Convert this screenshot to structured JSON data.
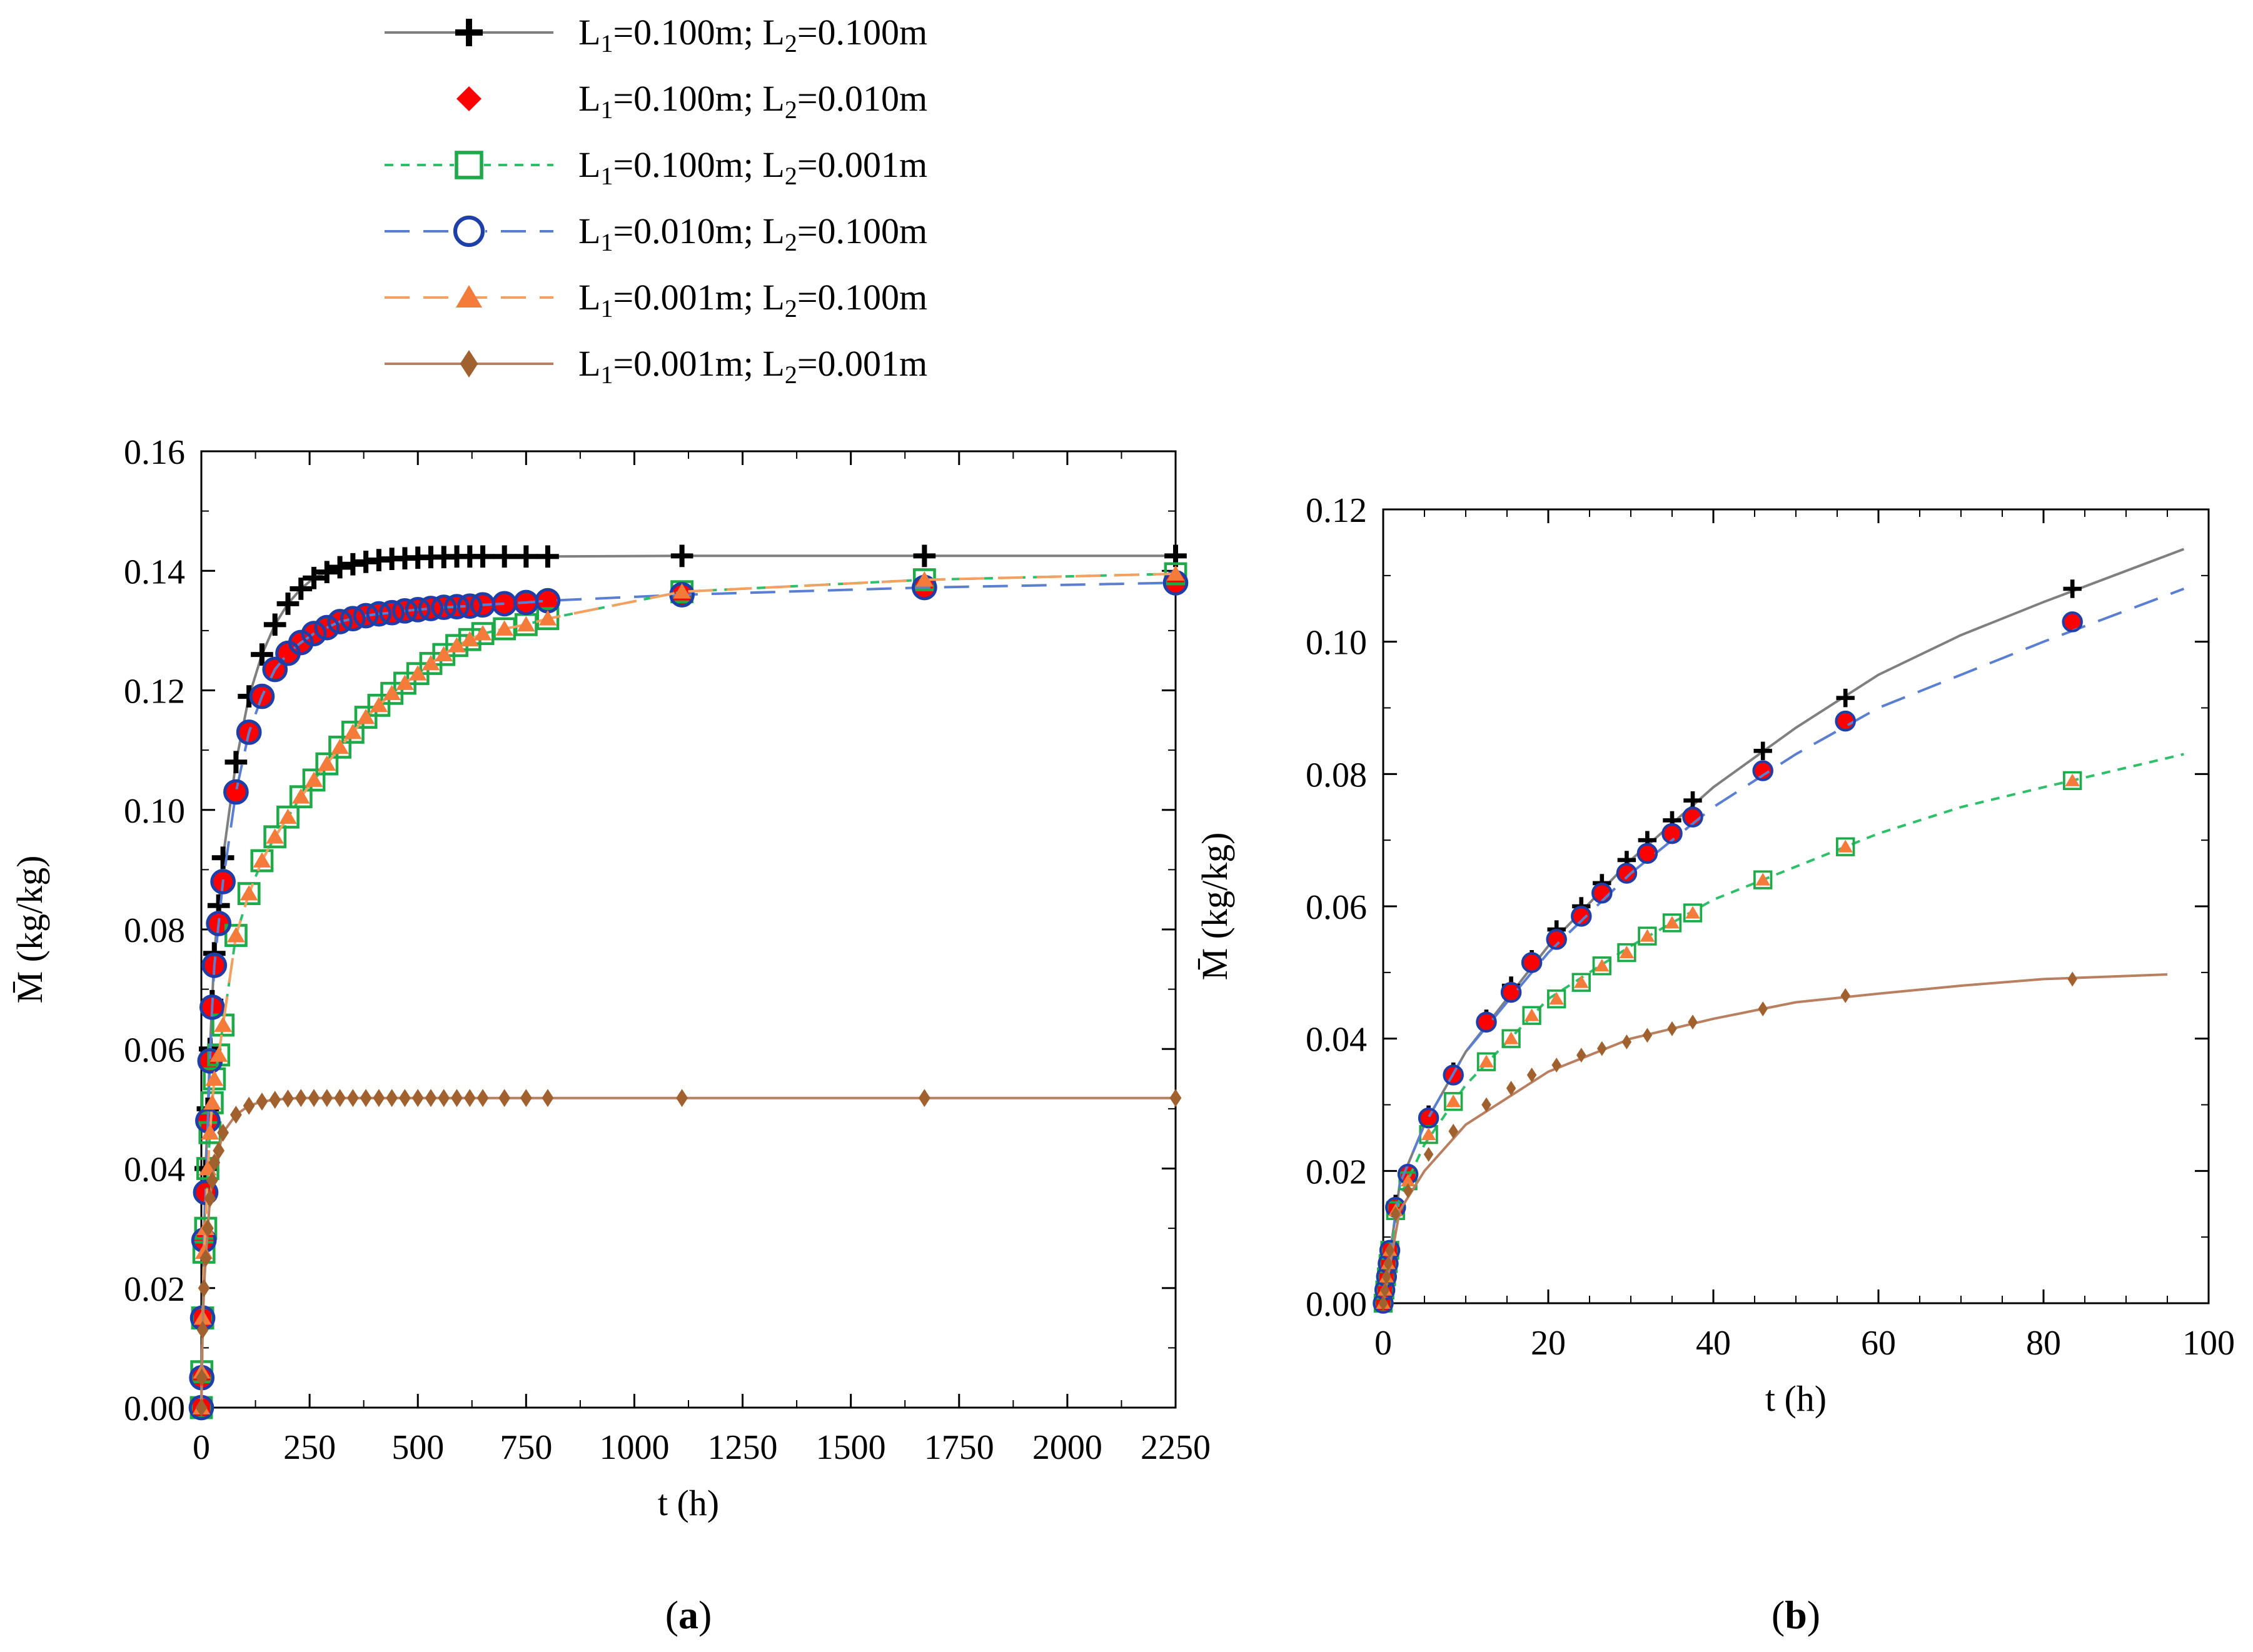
{
  "legend": {
    "entries": [
      {
        "id": "s1",
        "l1": "0.100m",
        "l2": "0.100m",
        "color": "#000000",
        "line_color": "#7f7f7f",
        "marker": "plus",
        "dash": "solid"
      },
      {
        "id": "s2",
        "l1": "0.100m",
        "l2": "0.010m",
        "color": "#ff0000",
        "line_color": "#ff0000",
        "marker": "diamond",
        "dash": "none"
      },
      {
        "id": "s3",
        "l1": "0.100m",
        "l2": "0.001m",
        "color": "#1faa4a",
        "line_color": "#2fbf6a",
        "marker": "square-open",
        "dash": "short"
      },
      {
        "id": "s4",
        "l1": "0.010m",
        "l2": "0.100m",
        "color": "#1f3fa8",
        "line_color": "#5a7fd0",
        "marker": "circle-open",
        "dash": "long"
      },
      {
        "id": "s5",
        "l1": "0.001m",
        "l2": "0.100m",
        "color": "#f47b3a",
        "line_color": "#f4a060",
        "marker": "triangle",
        "dash": "long"
      },
      {
        "id": "s6",
        "l1": "0.001m",
        "l2": "0.001m",
        "color": "#a0612e",
        "line_color": "#b88060",
        "marker": "diamond-small",
        "dash": "solid"
      }
    ]
  },
  "chart_data": [
    {
      "type": "line",
      "panel_label": "a",
      "xlabel": "t (h)",
      "ylabel": "M̄ (kg/kg)",
      "xlim": [
        0,
        2250
      ],
      "ylim": [
        0,
        0.16
      ],
      "xticks": [
        0,
        250,
        500,
        750,
        1000,
        1250,
        1500,
        1750,
        2000,
        2250
      ],
      "yticks": [
        0.0,
        0.02,
        0.04,
        0.06,
        0.08,
        0.1,
        0.12,
        0.14,
        0.16
      ],
      "series": [
        {
          "name": "L1=0.100m; L2=0.100m",
          "x": [
            0,
            1,
            3,
            6,
            10,
            15,
            20,
            25,
            30,
            40,
            50,
            80,
            110,
            140,
            170,
            200,
            230,
            260,
            290,
            320,
            350,
            380,
            410,
            440,
            470,
            500,
            530,
            560,
            590,
            620,
            650,
            700,
            750,
            800,
            1110,
            1670,
            2250
          ],
          "y": [
            0,
            0.005,
            0.015,
            0.028,
            0.04,
            0.05,
            0.06,
            0.068,
            0.076,
            0.084,
            0.092,
            0.108,
            0.119,
            0.126,
            0.131,
            0.1345,
            0.137,
            0.1388,
            0.1398,
            0.1406,
            0.1411,
            0.1415,
            0.1418,
            0.142,
            0.1421,
            0.1422,
            0.1423,
            0.1423,
            0.1424,
            0.1424,
            0.1424,
            0.1424,
            0.1424,
            0.1424,
            0.1425,
            0.1425,
            0.1425
          ]
        },
        {
          "name": "L1=0.100m; L2=0.010m",
          "x": [
            0,
            1,
            3,
            6,
            10,
            15,
            20,
            25,
            30,
            40,
            50,
            80,
            110,
            140,
            170,
            200,
            230,
            260,
            290,
            320,
            350,
            380,
            410,
            440,
            470,
            500,
            530,
            560,
            590,
            620,
            650,
            700,
            750,
            800,
            1110,
            1670,
            2250
          ],
          "y": [
            0,
            0.005,
            0.015,
            0.028,
            0.036,
            0.048,
            0.058,
            0.067,
            0.074,
            0.081,
            0.088,
            0.103,
            0.113,
            0.119,
            0.1235,
            0.1262,
            0.128,
            0.1295,
            0.1305,
            0.1315,
            0.132,
            0.1325,
            0.1328,
            0.133,
            0.1333,
            0.1335,
            0.1337,
            0.1339,
            0.134,
            0.1341,
            0.1343,
            0.1345,
            0.1347,
            0.135,
            0.136,
            0.1372,
            0.138
          ]
        },
        {
          "name": "L1=0.100m; L2=0.001m",
          "x": [
            0,
            1,
            3,
            6,
            10,
            15,
            20,
            25,
            30,
            40,
            50,
            80,
            110,
            140,
            170,
            200,
            230,
            260,
            290,
            320,
            350,
            380,
            410,
            440,
            470,
            500,
            530,
            560,
            590,
            620,
            650,
            700,
            750,
            800,
            1110,
            1670,
            2250
          ],
          "y": [
            0,
            0.006,
            0.015,
            0.026,
            0.03,
            0.04,
            0.046,
            0.051,
            0.055,
            0.059,
            0.064,
            0.079,
            0.086,
            0.0915,
            0.0955,
            0.0988,
            0.1022,
            0.105,
            0.1077,
            0.1105,
            0.113,
            0.1155,
            0.1175,
            0.1195,
            0.1212,
            0.1228,
            0.1245,
            0.126,
            0.1275,
            0.1285,
            0.1295,
            0.1303,
            0.131,
            0.132,
            0.1365,
            0.1385,
            0.1395
          ]
        },
        {
          "name": "L1=0.010m; L2=0.100m",
          "x": [
            0,
            1,
            3,
            6,
            10,
            15,
            20,
            25,
            30,
            40,
            50,
            80,
            110,
            140,
            170,
            200,
            230,
            260,
            290,
            320,
            350,
            380,
            410,
            440,
            470,
            500,
            530,
            560,
            590,
            620,
            650,
            700,
            750,
            800,
            1110,
            1670,
            2250
          ],
          "y": [
            0,
            0.005,
            0.015,
            0.028,
            0.036,
            0.048,
            0.058,
            0.067,
            0.074,
            0.081,
            0.088,
            0.103,
            0.113,
            0.119,
            0.1235,
            0.1262,
            0.128,
            0.1295,
            0.1305,
            0.1315,
            0.132,
            0.1325,
            0.1328,
            0.133,
            0.1333,
            0.1335,
            0.1337,
            0.1339,
            0.134,
            0.1341,
            0.1343,
            0.1345,
            0.1347,
            0.135,
            0.136,
            0.1372,
            0.138
          ]
        },
        {
          "name": "L1=0.001m; L2=0.100m",
          "x": [
            0,
            1,
            3,
            6,
            10,
            15,
            20,
            25,
            30,
            40,
            50,
            80,
            110,
            140,
            170,
            200,
            230,
            260,
            290,
            320,
            350,
            380,
            410,
            440,
            470,
            500,
            530,
            560,
            590,
            620,
            650,
            700,
            750,
            800,
            1110,
            1670,
            2250
          ],
          "y": [
            0,
            0.006,
            0.015,
            0.026,
            0.03,
            0.04,
            0.046,
            0.051,
            0.055,
            0.059,
            0.064,
            0.079,
            0.086,
            0.0915,
            0.0955,
            0.0988,
            0.1022,
            0.105,
            0.1077,
            0.1105,
            0.113,
            0.1155,
            0.1175,
            0.1195,
            0.1212,
            0.1228,
            0.1245,
            0.126,
            0.1275,
            0.1285,
            0.1295,
            0.1303,
            0.131,
            0.132,
            0.1365,
            0.1385,
            0.1395
          ]
        },
        {
          "name": "L1=0.001m; L2=0.001m",
          "x": [
            0,
            1,
            3,
            6,
            10,
            15,
            20,
            25,
            30,
            40,
            50,
            80,
            110,
            140,
            170,
            200,
            230,
            260,
            290,
            320,
            350,
            380,
            410,
            440,
            470,
            500,
            530,
            560,
            590,
            620,
            650,
            700,
            750,
            800,
            1110,
            1670,
            2250
          ],
          "y": [
            0,
            0.005,
            0.013,
            0.02,
            0.025,
            0.03,
            0.035,
            0.038,
            0.041,
            0.043,
            0.046,
            0.049,
            0.0505,
            0.0512,
            0.0515,
            0.0517,
            0.0518,
            0.0518,
            0.0518,
            0.0518,
            0.0518,
            0.0518,
            0.0518,
            0.0518,
            0.0518,
            0.0518,
            0.0518,
            0.0518,
            0.0518,
            0.0518,
            0.0518,
            0.0518,
            0.0518,
            0.0518,
            0.0518,
            0.0518,
            0.0518
          ]
        }
      ]
    },
    {
      "type": "line",
      "panel_label": "b",
      "xlabel": "t (h)",
      "ylabel": "M̄ (kg/kg)",
      "xlim": [
        0,
        100
      ],
      "ylim": [
        0,
        0.12
      ],
      "xticks": [
        0,
        20,
        40,
        60,
        80,
        100
      ],
      "yticks": [
        0.0,
        0.02,
        0.04,
        0.06,
        0.08,
        0.1,
        0.12
      ],
      "series": [
        {
          "name": "L1=0.100m; L2=0.100m",
          "x": [
            0,
            0.2,
            0.4,
            0.6,
            0.8,
            1.5,
            3,
            5.5,
            8.5,
            12.5,
            15.5,
            18,
            21,
            24,
            26.5,
            29.5,
            32,
            35,
            37.5,
            46,
            56,
            83.5
          ],
          "y": [
            0,
            0.002,
            0.004,
            0.006,
            0.008,
            0.015,
            0.0195,
            0.0285,
            0.035,
            0.043,
            0.048,
            0.052,
            0.0565,
            0.06,
            0.0635,
            0.067,
            0.07,
            0.073,
            0.076,
            0.0835,
            0.0915,
            0.108
          ],
          "curve_x": [
            0,
            2,
            5,
            10,
            20,
            30,
            40,
            50,
            60,
            70,
            80,
            97
          ],
          "curve_y": [
            0,
            0.018,
            0.027,
            0.038,
            0.054,
            0.067,
            0.078,
            0.087,
            0.095,
            0.101,
            0.106,
            0.114
          ]
        },
        {
          "name": "L1=0.100m; L2=0.010m",
          "x": [
            0,
            0.2,
            0.4,
            0.6,
            0.8,
            1.5,
            3,
            5.5,
            8.5,
            12.5,
            15.5,
            18,
            21,
            24,
            26.5,
            29.5,
            32,
            35,
            37.5,
            46,
            56,
            83.5
          ],
          "y": [
            0,
            0.002,
            0.004,
            0.006,
            0.008,
            0.0145,
            0.0195,
            0.028,
            0.0345,
            0.0425,
            0.047,
            0.0515,
            0.055,
            0.0585,
            0.062,
            0.065,
            0.068,
            0.071,
            0.0735,
            0.0805,
            0.088,
            0.103
          ]
        },
        {
          "name": "L1=0.100m; L2=0.001m",
          "x": [
            0,
            0.2,
            0.4,
            0.6,
            0.8,
            1.5,
            3,
            5.5,
            8.5,
            12.5,
            15.5,
            18,
            21,
            24,
            26.5,
            29.5,
            32,
            35,
            37.5,
            46,
            56,
            83.5
          ],
          "y": [
            0,
            0.002,
            0.004,
            0.006,
            0.008,
            0.014,
            0.0185,
            0.0255,
            0.0305,
            0.0365,
            0.04,
            0.0435,
            0.046,
            0.0485,
            0.051,
            0.053,
            0.0555,
            0.0575,
            0.059,
            0.064,
            0.069,
            0.079
          ],
          "curve_x": [
            0,
            2,
            5,
            10,
            20,
            30,
            40,
            50,
            60,
            70,
            80,
            97
          ],
          "curve_y": [
            0,
            0.016,
            0.024,
            0.033,
            0.046,
            0.054,
            0.061,
            0.066,
            0.071,
            0.075,
            0.078,
            0.083
          ]
        },
        {
          "name": "L1=0.010m; L2=0.100m",
          "x": [
            0,
            0.2,
            0.4,
            0.6,
            0.8,
            1.5,
            3,
            5.5,
            8.5,
            12.5,
            15.5,
            18,
            21,
            24,
            26.5,
            29.5,
            32,
            35,
            37.5,
            46,
            56,
            83.5
          ],
          "y": [
            0,
            0.002,
            0.004,
            0.006,
            0.008,
            0.0145,
            0.0195,
            0.028,
            0.0345,
            0.0425,
            0.047,
            0.0515,
            0.055,
            0.0585,
            0.062,
            0.065,
            0.068,
            0.071,
            0.0735,
            0.0805,
            0.088,
            0.103
          ],
          "curve_x": [
            0,
            2,
            5,
            10,
            20,
            30,
            40,
            50,
            60,
            70,
            80,
            97
          ],
          "curve_y": [
            0,
            0.018,
            0.027,
            0.038,
            0.053,
            0.065,
            0.075,
            0.083,
            0.09,
            0.095,
            0.1,
            0.108
          ]
        },
        {
          "name": "L1=0.001m; L2=0.100m",
          "x": [
            0,
            0.2,
            0.4,
            0.6,
            0.8,
            1.5,
            3,
            5.5,
            8.5,
            12.5,
            15.5,
            18,
            21,
            24,
            26.5,
            29.5,
            32,
            35,
            37.5,
            46,
            56,
            83.5
          ],
          "y": [
            0,
            0.002,
            0.004,
            0.006,
            0.008,
            0.014,
            0.0185,
            0.0255,
            0.0305,
            0.0365,
            0.04,
            0.0435,
            0.046,
            0.0485,
            0.051,
            0.053,
            0.0555,
            0.0575,
            0.059,
            0.064,
            0.069,
            0.079
          ]
        },
        {
          "name": "L1=0.001m; L2=0.001m",
          "x": [
            0,
            0.2,
            0.4,
            0.6,
            0.8,
            1.5,
            3,
            5.5,
            8.5,
            12.5,
            15.5,
            18,
            21,
            24,
            26.5,
            29.5,
            32,
            35,
            37.5,
            46,
            56,
            83.5
          ],
          "y": [
            0,
            0.002,
            0.004,
            0.006,
            0.008,
            0.0135,
            0.017,
            0.0225,
            0.026,
            0.03,
            0.0325,
            0.0345,
            0.036,
            0.0375,
            0.0385,
            0.0395,
            0.0405,
            0.0415,
            0.0425,
            0.0445,
            0.0465,
            0.049
          ],
          "curve_x": [
            0,
            2,
            5,
            10,
            20,
            30,
            40,
            50,
            60,
            70,
            80,
            95
          ],
          "curve_y": [
            0,
            0.014,
            0.02,
            0.027,
            0.035,
            0.04,
            0.043,
            0.0455,
            0.0468,
            0.048,
            0.049,
            0.0497
          ]
        }
      ]
    }
  ]
}
